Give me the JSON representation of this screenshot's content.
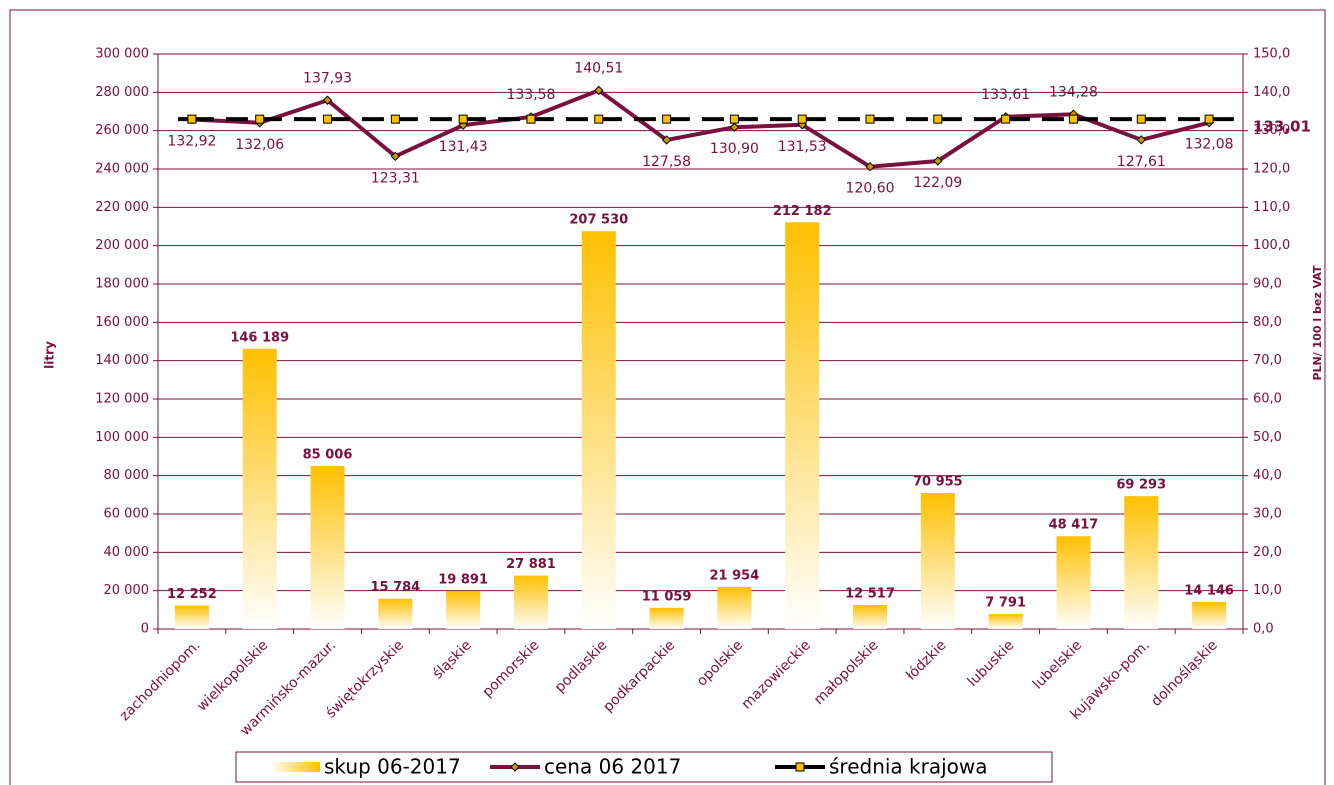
{
  "chart_data": {
    "type": "bar-line",
    "categories": [
      "zachodniopom.",
      "wielkopolskie",
      "warmińsko-mazur.",
      "świętokrzyskie",
      "śląskie",
      "pomorskie",
      "podlaskie",
      "podkarpackie",
      "opolskie",
      "mazowieckie",
      "małopolskie",
      "łódzkie",
      "lubuskie",
      "lubelskie",
      "kujawsko-pom.",
      "dolnośląskie"
    ],
    "series": [
      {
        "name": "skup 06-2017",
        "type": "bar",
        "color": "#ffc000",
        "axis": "y",
        "values": [
          12252,
          146189,
          85006,
          15784,
          19891,
          27881,
          207530,
          11059,
          21954,
          212182,
          12517,
          70955,
          7791,
          48417,
          69293,
          14146
        ],
        "value_labels": [
          "12 252",
          "146 189",
          "85 006",
          "15 784",
          "19 891",
          "27 881",
          "207 530",
          "11 059",
          "21 954",
          "212 182",
          "12 517",
          "70 955",
          "7 791",
          "48 417",
          "69 293",
          "14 146"
        ]
      },
      {
        "name": "cena 06 2017",
        "type": "line",
        "color": "#7b0f3e",
        "axis": "y2",
        "values": [
          132.92,
          132.06,
          137.93,
          123.31,
          131.43,
          133.58,
          140.51,
          127.58,
          130.9,
          131.53,
          120.6,
          122.09,
          133.61,
          134.28,
          127.61,
          132.08
        ],
        "value_labels": [
          "132,92",
          "132,06",
          "137,93",
          "123,31",
          "131,43",
          "133,58",
          "140,51",
          "127,58",
          "130,90",
          "131,53",
          "120,60",
          "122,09",
          "133,61",
          "134,28",
          "127,61",
          "132,08"
        ]
      },
      {
        "name": "średnia krajowa",
        "type": "dashed-line",
        "color": "#000000",
        "axis": "y2",
        "values": [
          133.01,
          133.01,
          133.01,
          133.01,
          133.01,
          133.01,
          133.01,
          133.01,
          133.01,
          133.01,
          133.01,
          133.01,
          133.01,
          133.01,
          133.01,
          133.01
        ]
      }
    ],
    "y2_annotation": {
      "value": 133.01,
      "label": "133,01"
    },
    "ylabel": "litry",
    "y2label": "PLN/ 100 l bez VAT",
    "ylim": [
      0,
      300000
    ],
    "yticks": [
      0,
      {
        "value": 20000,
        "label": "20 000"
      },
      {
        "value": 40000,
        "label": "40 000"
      },
      {
        "value": 60000,
        "label": "60 000"
      },
      {
        "value": 80000,
        "label": "80 000"
      },
      {
        "value": 100000,
        "label": "100 000"
      },
      {
        "value": 120000,
        "label": "120 000"
      },
      {
        "value": 140000,
        "label": "140 000"
      },
      {
        "value": 160000,
        "label": "160 000"
      },
      {
        "value": 180000,
        "label": "180 000"
      },
      {
        "value": 200000,
        "label": "200 000"
      },
      {
        "value": 220000,
        "label": "220 000"
      },
      {
        "value": 240000,
        "label": "240 000"
      },
      {
        "value": 260000,
        "label": "260 000"
      },
      {
        "value": 280000,
        "label": "280 000"
      },
      {
        "value": 300000,
        "label": "300 000"
      }
    ],
    "y2lim": [
      0,
      150
    ],
    "y2ticks": [
      {
        "value": 0,
        "label": "0,0"
      },
      {
        "value": 10,
        "label": "10,0"
      },
      {
        "value": 20,
        "label": "20,0"
      },
      {
        "value": 30,
        "label": "30,0"
      },
      {
        "value": 40,
        "label": "40,0"
      },
      {
        "value": 50,
        "label": "50,0"
      },
      {
        "value": 60,
        "label": "60,0"
      },
      {
        "value": 70,
        "label": "70,0"
      },
      {
        "value": 80,
        "label": "80,0"
      },
      {
        "value": 90,
        "label": "90,0"
      },
      {
        "value": 100,
        "label": "100,0"
      },
      {
        "value": 110,
        "label": "110,0"
      },
      {
        "value": 120,
        "label": "120,0"
      },
      {
        "value": 130,
        "label": "130,0"
      },
      {
        "value": 140,
        "label": "140,0"
      },
      {
        "value": 150,
        "label": "150,0"
      }
    ],
    "grid": true,
    "legend": "bottom"
  }
}
